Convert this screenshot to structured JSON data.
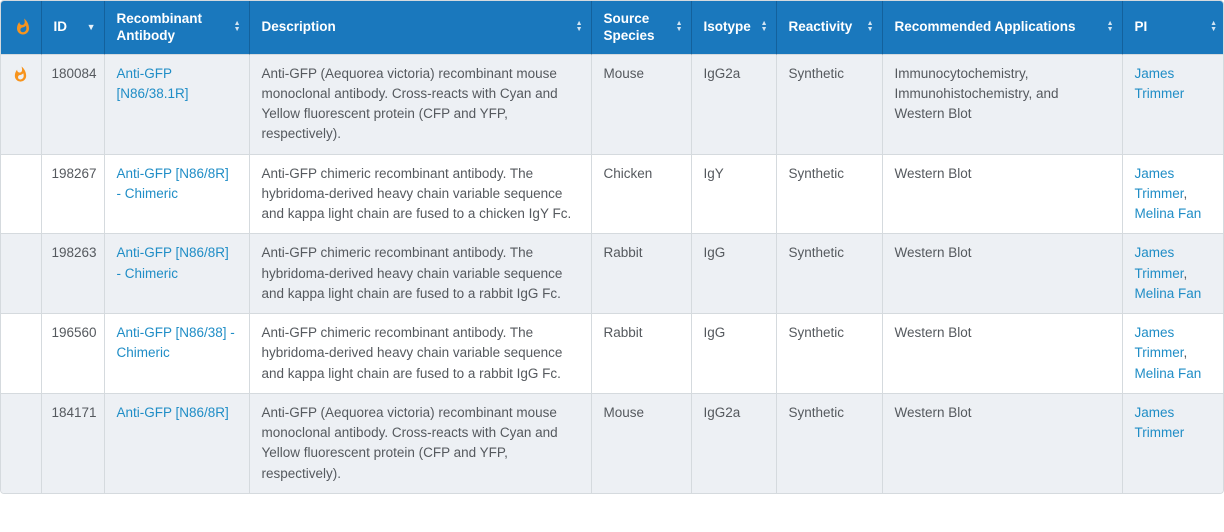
{
  "colors": {
    "header_bg": "#1a78bd",
    "header_text": "#ffffff",
    "link": "#1f8dc6",
    "flame": "#f7941e",
    "row_alt": "#edf0f4",
    "row_bg": "#ffffff",
    "border": "#d5dade",
    "text": "#55595e"
  },
  "table": {
    "columns": [
      {
        "name": "hot",
        "label": "",
        "icon": "flame-icon",
        "sort": "none"
      },
      {
        "name": "id",
        "label": "ID",
        "sort": "desc"
      },
      {
        "name": "antibody",
        "label": "Recombinant Antibody",
        "sort": "both"
      },
      {
        "name": "description",
        "label": "Description",
        "sort": "both"
      },
      {
        "name": "source-species",
        "label": "Source Species",
        "sort": "both"
      },
      {
        "name": "isotype",
        "label": "Isotype",
        "sort": "both"
      },
      {
        "name": "reactivity",
        "label": "Reactivity",
        "sort": "both"
      },
      {
        "name": "applications",
        "label": "Recommended Applications",
        "sort": "both"
      },
      {
        "name": "pi",
        "label": "PI",
        "sort": "both"
      }
    ],
    "rows": [
      {
        "hot": true,
        "id": "180084",
        "antibody": "Anti-GFP [N86/38.1R]",
        "description": "Anti-GFP (Aequorea victoria) recombinant mouse monoclonal antibody. Cross-reacts with Cyan and Yellow fluorescent protein (CFP and YFP, respectively).",
        "source_species": "Mouse",
        "isotype": "IgG2a",
        "reactivity": "Synthetic",
        "applications": "Immunocytochemistry, Immunohistochemistry, and Western Blot",
        "pi": [
          "James Trimmer"
        ]
      },
      {
        "hot": false,
        "id": "198267",
        "antibody": "Anti-GFP [N86/8R] - Chimeric",
        "description": "Anti-GFP chimeric recombinant antibody. The hybridoma-derived heavy chain variable sequence and kappa light chain are fused to a chicken IgY Fc.",
        "source_species": "Chicken",
        "isotype": "IgY",
        "reactivity": "Synthetic",
        "applications": "Western Blot",
        "pi": [
          "James Trimmer",
          "Melina Fan"
        ]
      },
      {
        "hot": false,
        "id": "198263",
        "antibody": "Anti-GFP [N86/8R] - Chimeric",
        "description": "Anti-GFP chimeric recombinant antibody. The hybridoma-derived heavy chain variable sequence and kappa light chain are fused to a rabbit IgG Fc.",
        "source_species": "Rabbit",
        "isotype": "IgG",
        "reactivity": "Synthetic",
        "applications": "Western Blot",
        "pi": [
          "James Trimmer",
          "Melina Fan"
        ]
      },
      {
        "hot": false,
        "id": "196560",
        "antibody": "Anti-GFP [N86/38] - Chimeric",
        "description": "Anti-GFP chimeric recombinant antibody. The hybridoma-derived heavy chain variable sequence and kappa light chain are fused to a rabbit IgG Fc.",
        "source_species": "Rabbit",
        "isotype": "IgG",
        "reactivity": "Synthetic",
        "applications": "Western Blot",
        "pi": [
          "James Trimmer",
          "Melina Fan"
        ]
      },
      {
        "hot": false,
        "id": "184171",
        "antibody": "Anti-GFP [N86/8R]",
        "description": "Anti-GFP (Aequorea victoria) recombinant mouse monoclonal antibody. Cross-reacts with Cyan and Yellow fluorescent protein (CFP and YFP, respectively).",
        "source_species": "Mouse",
        "isotype": "IgG2a",
        "reactivity": "Synthetic",
        "applications": "Western Blot",
        "pi": [
          "James Trimmer"
        ]
      }
    ]
  }
}
